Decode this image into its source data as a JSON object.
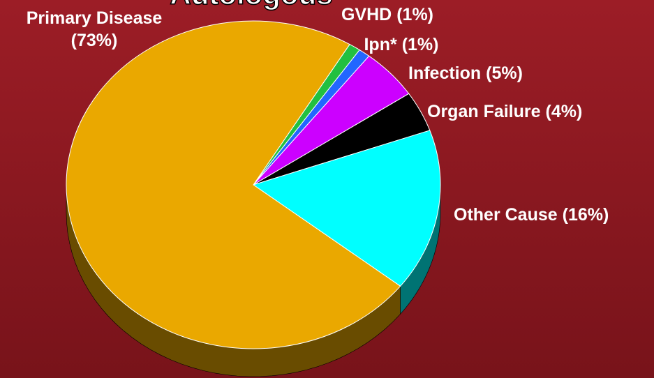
{
  "chart_data": {
    "type": "pie",
    "title": "Autologous",
    "categories": [
      "Primary Disease",
      "GVHD",
      "Ipn*",
      "Infection",
      "Organ Failure",
      "Other Cause"
    ],
    "values": [
      73,
      1,
      1,
      5,
      4,
      16
    ],
    "value_labels": [
      "(73%)",
      "(1%)",
      "(1%)",
      "(5%)",
      "(4%)",
      "(16%)"
    ],
    "colors": [
      "#eaa800",
      "#22c040",
      "#2266ff",
      "#cc00ff",
      "#000000",
      "#00ffff"
    ]
  }
}
